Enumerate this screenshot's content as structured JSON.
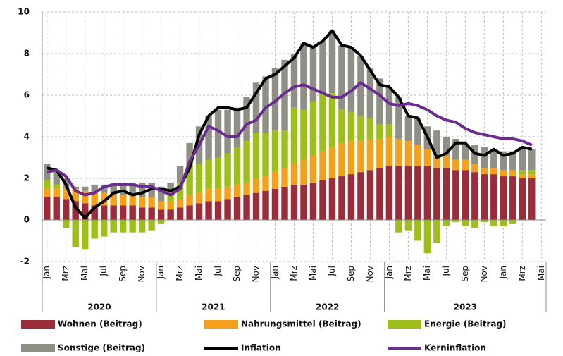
{
  "chart_data": {
    "type": "bar",
    "categories": [
      "Jan",
      null,
      "Mrz",
      null,
      "Mai",
      null,
      "Jul",
      null,
      "Sep",
      null,
      "Nov",
      null,
      "Jan",
      null,
      "Mrz",
      null,
      "Mai",
      null,
      "Jul",
      null,
      "Sep",
      null,
      "Nov",
      null,
      "Jan",
      null,
      "Mrz",
      null,
      "Mai",
      null,
      "Jul",
      null,
      "Sep",
      null,
      "Nov",
      null,
      "Jan",
      null,
      "Mrz",
      null,
      "Mai",
      null,
      "Jul",
      null,
      "Sep",
      null,
      "Nov",
      null,
      "Jan",
      null,
      "Mrz",
      null,
      "Mai"
    ],
    "years": [
      "2020",
      "2021",
      "2022",
      "2023"
    ],
    "ylim": [
      -2,
      10
    ],
    "yticks": [
      -2,
      0,
      2,
      4,
      6,
      8,
      10
    ],
    "grid": true,
    "series": [
      {
        "name": "Wohnen (Beitrag)",
        "type": "bar",
        "color": "#9b2d3a",
        "values": [
          1.1,
          1.1,
          1.0,
          0.9,
          0.8,
          0.7,
          0.7,
          0.7,
          0.7,
          0.7,
          0.6,
          0.6,
          0.5,
          0.5,
          0.6,
          0.7,
          0.8,
          0.9,
          0.9,
          1.0,
          1.1,
          1.2,
          1.3,
          1.4,
          1.5,
          1.6,
          1.7,
          1.7,
          1.8,
          1.9,
          2.0,
          2.1,
          2.2,
          2.3,
          2.4,
          2.5,
          2.6,
          2.6,
          2.6,
          2.6,
          2.6,
          2.5,
          2.5,
          2.4,
          2.4,
          2.3,
          2.2,
          2.2,
          2.1,
          2.1,
          2.0,
          2.0,
          null
        ]
      },
      {
        "name": "Nahrungsmittel (Beitrag)",
        "type": "bar",
        "color": "#f5a01a",
        "values": [
          0.4,
          0.4,
          0.5,
          0.6,
          0.6,
          0.6,
          0.6,
          0.5,
          0.5,
          0.5,
          0.5,
          0.5,
          0.4,
          0.4,
          0.4,
          0.5,
          0.5,
          0.6,
          0.6,
          0.6,
          0.6,
          0.6,
          0.7,
          0.7,
          0.8,
          0.9,
          1.0,
          1.2,
          1.3,
          1.4,
          1.5,
          1.6,
          1.6,
          1.5,
          1.5,
          1.4,
          1.4,
          1.3,
          1.2,
          1.0,
          0.8,
          0.6,
          0.6,
          0.5,
          0.5,
          0.4,
          0.3,
          0.3,
          0.3,
          0.3,
          0.2,
          0.2,
          null
        ]
      },
      {
        "name": "Energie (Beitrag)",
        "type": "bar",
        "color": "#9cbf1c",
        "values": [
          0.4,
          0.2,
          -0.4,
          -1.3,
          -1.4,
          -0.9,
          -0.8,
          -0.6,
          -0.6,
          -0.6,
          -0.6,
          -0.5,
          -0.2,
          0.3,
          0.8,
          1.5,
          1.4,
          1.4,
          1.5,
          1.6,
          1.8,
          2.0,
          2.2,
          2.1,
          2.0,
          1.8,
          2.7,
          2.4,
          2.6,
          2.8,
          2.6,
          1.6,
          1.4,
          1.2,
          1.0,
          0.7,
          0.6,
          -0.6,
          -0.5,
          -1.0,
          -1.6,
          -1.1,
          -0.3,
          -0.1,
          -0.3,
          -0.4,
          -0.1,
          -0.3,
          -0.3,
          -0.2,
          0.2,
          0.2,
          null
        ]
      },
      {
        "name": "Sonstige (Beitrag)",
        "type": "bar",
        "color": "#8f8f86",
        "values": [
          0.8,
          0.7,
          0.5,
          0.1,
          0.2,
          0.4,
          0.4,
          0.6,
          0.6,
          0.6,
          0.7,
          0.7,
          0.7,
          0.6,
          0.8,
          1.0,
          1.8,
          2.1,
          2.3,
          2.1,
          1.9,
          2.1,
          2.4,
          2.7,
          3.0,
          3.4,
          2.6,
          3.2,
          2.6,
          2.5,
          3.0,
          3.1,
          3.1,
          2.9,
          2.4,
          2.2,
          1.8,
          2.0,
          1.2,
          1.3,
          1.1,
          1.2,
          0.9,
          1.0,
          0.7,
          0.9,
          1.0,
          0.9,
          0.9,
          0.9,
          1.1,
          1.0,
          null
        ]
      },
      {
        "name": "Inflation",
        "type": "line",
        "color": "#000000",
        "values": [
          2.5,
          2.4,
          1.7,
          0.6,
          0.1,
          0.6,
          0.9,
          1.3,
          1.4,
          1.2,
          1.3,
          1.5,
          1.5,
          1.4,
          1.6,
          2.5,
          4.1,
          5.0,
          5.4,
          5.4,
          5.3,
          5.4,
          6.1,
          6.8,
          7.0,
          7.4,
          7.8,
          8.5,
          8.3,
          8.6,
          9.1,
          8.4,
          8.3,
          7.9,
          7.2,
          6.5,
          6.4,
          5.9,
          5.0,
          4.9,
          4.0,
          3.0,
          3.2,
          3.7,
          3.7,
          3.2,
          3.1,
          3.4,
          3.1,
          3.2,
          3.5,
          3.4,
          null
        ]
      },
      {
        "name": "Kerninflation",
        "type": "line",
        "color": "#6a2c91",
        "values": [
          2.3,
          2.4,
          2.1,
          1.4,
          1.2,
          1.3,
          1.6,
          1.7,
          1.7,
          1.7,
          1.6,
          1.6,
          1.4,
          1.2,
          1.5,
          2.8,
          3.6,
          4.5,
          4.3,
          4.0,
          4.0,
          4.6,
          4.8,
          5.4,
          5.7,
          6.1,
          6.4,
          6.5,
          6.3,
          6.1,
          5.9,
          5.9,
          6.2,
          6.6,
          6.3,
          6.0,
          5.6,
          5.5,
          5.6,
          5.5,
          5.3,
          5.0,
          4.8,
          4.7,
          4.4,
          4.2,
          4.1,
          4.0,
          3.9,
          3.9,
          3.8,
          3.6,
          null
        ]
      }
    ]
  }
}
